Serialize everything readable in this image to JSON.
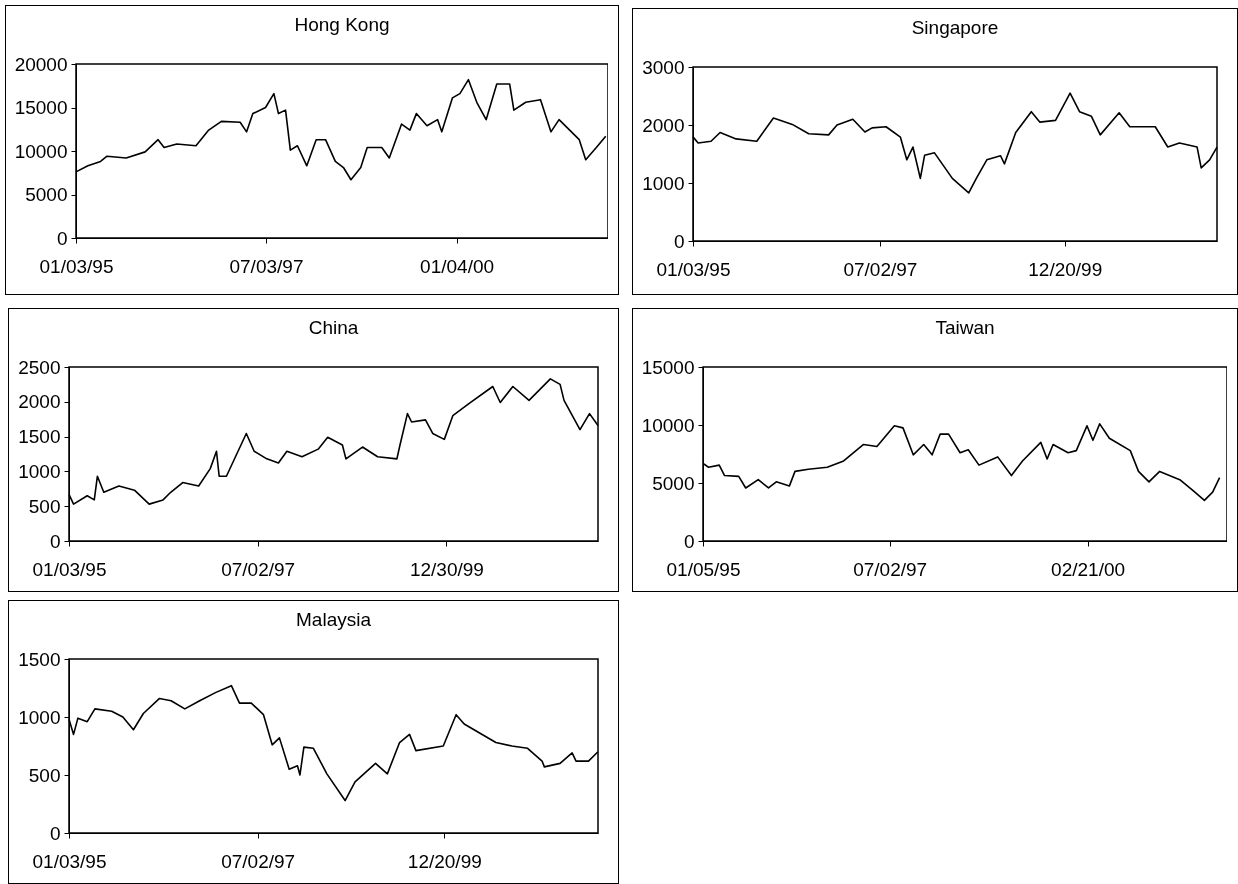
{
  "chart_data": [
    {
      "type": "line",
      "title": "Hong Kong",
      "xlim": [
        "1995-01-03",
        "2001-12-31"
      ],
      "xticks": [
        {
          "value": "1995-01-03",
          "label": "01/03/95"
        },
        {
          "value": "1997-07-03",
          "label": "07/03/97"
        },
        {
          "value": "2000-01-04",
          "label": "01/04/00"
        }
      ],
      "ylim": [
        0,
        20000
      ],
      "yticks": [
        0,
        5000,
        10000,
        15000,
        20000
      ],
      "series": [
        {
          "color": "#000000",
          "x": [
            "1995-01-03",
            "1995-03-01",
            "1995-05-01",
            "1995-06-01",
            "1995-09-01",
            "1995-12-01",
            "1996-02-01",
            "1996-03-01",
            "1996-05-01",
            "1996-08-01",
            "1996-10-01",
            "1996-12-01",
            "1997-03-01",
            "1997-04-01",
            "1997-05-01",
            "1997-07-01",
            "1997-08-10",
            "1997-09-01",
            "1997-10-05",
            "1997-10-28",
            "1997-12-01",
            "1998-01-15",
            "1998-03-01",
            "1998-04-15",
            "1998-06-01",
            "1998-07-10",
            "1998-08-15",
            "1998-10-01",
            "1998-11-01",
            "1999-01-10",
            "1999-02-15",
            "1999-04-15",
            "1999-05-25",
            "1999-06-25",
            "1999-08-15",
            "1999-10-05",
            "1999-10-25",
            "1999-12-15",
            "2000-01-20",
            "2000-03-01",
            "2000-04-10",
            "2000-05-25",
            "2000-07-15",
            "2000-09-15",
            "2000-10-05",
            "2000-12-01",
            "2001-02-10",
            "2001-04-01",
            "2001-05-10",
            "2001-08-15",
            "2001-09-15",
            "2001-11-05",
            "2001-12-20"
          ],
          "values": [
            7600,
            8300,
            8800,
            9400,
            9200,
            9900,
            11300,
            10400,
            10800,
            10600,
            12400,
            13400,
            13300,
            12200,
            14300,
            15000,
            16600,
            14300,
            14700,
            10100,
            10600,
            8300,
            11300,
            11300,
            8800,
            8100,
            6700,
            8100,
            10400,
            10400,
            9200,
            13100,
            12400,
            14300,
            12900,
            13600,
            12200,
            16100,
            16600,
            18200,
            15600,
            13600,
            17700,
            17700,
            14700,
            15600,
            15900,
            12200,
            13600,
            11300,
            9000,
            10400,
            11700
          ]
        }
      ]
    },
    {
      "type": "line",
      "title": "Singapore",
      "xlim": [
        "1995-01-03",
        "2001-12-31"
      ],
      "xticks": [
        {
          "value": "1995-01-03",
          "label": "01/03/95"
        },
        {
          "value": "1997-07-02",
          "label": "07/02/97"
        },
        {
          "value": "1999-12-20",
          "label": "12/20/99"
        }
      ],
      "ylim": [
        0,
        3000
      ],
      "yticks": [
        0,
        1000,
        2000,
        3000
      ],
      "series": [
        {
          "color": "#000000",
          "x": [
            "1995-01-03",
            "1995-01-28",
            "1995-04-01",
            "1995-05-15",
            "1995-08-01",
            "1995-11-10",
            "1996-01-30",
            "1996-05-01",
            "1996-07-20",
            "1996-10-25",
            "1996-12-05",
            "1997-02-20",
            "1997-04-20",
            "1997-05-25",
            "1997-08-01",
            "1997-10-10",
            "1997-11-10",
            "1997-12-10",
            "1998-01-15",
            "1998-02-05",
            "1998-03-25",
            "1998-06-20",
            "1998-09-08",
            "1998-10-15",
            "1998-12-05",
            "1999-02-10",
            "1999-03-01",
            "1999-04-25",
            "1999-07-10",
            "1999-08-20",
            "1999-11-05",
            "2000-01-15",
            "2000-03-01",
            "2000-04-28",
            "2000-06-10",
            "2000-09-10",
            "2000-11-01",
            "2001-03-05",
            "2001-05-05",
            "2001-07-01",
            "2001-09-25",
            "2001-10-15",
            "2001-11-25",
            "2001-12-31"
          ],
          "values": [
            1795,
            1690,
            1720,
            1870,
            1760,
            1720,
            2120,
            2010,
            1850,
            1830,
            2000,
            2100,
            1880,
            1950,
            1970,
            1790,
            1400,
            1620,
            1080,
            1480,
            1520,
            1080,
            830,
            1080,
            1400,
            1470,
            1330,
            1870,
            2230,
            2050,
            2080,
            2550,
            2230,
            2150,
            1830,
            2210,
            1970,
            1970,
            1620,
            1690,
            1620,
            1260,
            1400,
            1620
          ]
        }
      ]
    },
    {
      "type": "line",
      "title": "China",
      "xlim": [
        "1995-01-03",
        "2001-12-31"
      ],
      "xticks": [
        {
          "value": "1995-01-03",
          "label": "01/03/95"
        },
        {
          "value": "1997-07-02",
          "label": "07/02/97"
        },
        {
          "value": "1999-12-30",
          "label": "12/30/99"
        }
      ],
      "ylim": [
        0,
        2500
      ],
      "yticks": [
        0,
        500,
        1000,
        1500,
        2000,
        2500
      ],
      "series": [
        {
          "color": "#000000",
          "x": [
            "1995-01-03",
            "1995-01-25",
            "1995-04-01",
            "1995-05-05",
            "1995-05-20",
            "1995-06-20",
            "1995-09-01",
            "1995-11-15",
            "1996-01-25",
            "1996-04-01",
            "1996-05-08",
            "1996-07-05",
            "1996-09-20",
            "1996-11-15",
            "1996-12-15",
            "1996-12-28",
            "1997-02-01",
            "1997-05-08",
            "1997-06-15",
            "1997-08-15",
            "1997-10-10",
            "1997-11-20",
            "1998-02-01",
            "1998-04-20",
            "1998-06-05",
            "1998-08-15",
            "1998-09-01",
            "1998-11-20",
            "1999-02-01",
            "1999-05-05",
            "1999-05-20",
            "1999-06-25",
            "1999-07-15",
            "1999-09-20",
            "1999-10-25",
            "1999-12-20",
            "2000-01-30",
            "2000-04-15",
            "2000-08-10",
            "2000-09-15",
            "2000-11-15",
            "2001-02-01",
            "2001-05-15",
            "2001-07-01",
            "2001-07-20",
            "2001-10-05",
            "2001-11-20",
            "2001-12-31"
          ],
          "values": [
            670,
            530,
            650,
            590,
            930,
            700,
            790,
            730,
            530,
            590,
            700,
            840,
            790,
            1040,
            1290,
            930,
            930,
            1545,
            1290,
            1180,
            1120,
            1290,
            1210,
            1320,
            1490,
            1380,
            1180,
            1350,
            1210,
            1180,
            1380,
            1830,
            1710,
            1740,
            1545,
            1460,
            1800,
            1970,
            2220,
            1990,
            2220,
            2020,
            2330,
            2250,
            2020,
            1600,
            1830,
            1660
          ]
        }
      ]
    },
    {
      "type": "line",
      "title": "Taiwan",
      "xlim": [
        "1995-01-05",
        "2001-12-31"
      ],
      "xticks": [
        {
          "value": "1995-01-05",
          "label": "01/05/95"
        },
        {
          "value": "1997-07-02",
          "label": "07/02/97"
        },
        {
          "value": "2000-02-21",
          "label": "02/21/00"
        }
      ],
      "ylim": [
        0,
        15000
      ],
      "yticks": [
        0,
        5000,
        10000,
        15000
      ],
      "series": [
        {
          "color": "#000000",
          "x": [
            "1995-01-05",
            "1995-02-01",
            "1995-03-25",
            "1995-04-20",
            "1995-06-28",
            "1995-08-01",
            "1995-10-01",
            "1995-11-20",
            "1995-12-28",
            "1996-03-01",
            "1996-03-28",
            "1996-06-01",
            "1996-09-01",
            "1996-11-20",
            "1997-02-25",
            "1997-05-01",
            "1997-07-25",
            "1997-09-05",
            "1997-10-25",
            "1997-12-15",
            "1998-01-25",
            "1998-03-05",
            "1998-04-15",
            "1998-06-10",
            "1998-07-20",
            "1998-09-10",
            "1998-12-10",
            "1999-02-15",
            "1999-04-10",
            "1999-07-08",
            "1999-08-08",
            "1999-09-06",
            "1999-11-18",
            "1999-12-28",
            "2000-02-18",
            "2000-03-18",
            "2000-04-20",
            "2000-06-06",
            "2000-09-16",
            "2000-10-26",
            "2000-12-16",
            "2001-02-06",
            "2001-05-15",
            "2001-07-16",
            "2001-09-12",
            "2001-10-22",
            "2001-11-25"
          ],
          "values": [
            6700,
            6360,
            6540,
            5640,
            5570,
            4570,
            5290,
            4570,
            5100,
            4750,
            6000,
            6180,
            6360,
            6900,
            8320,
            8140,
            9930,
            9750,
            7430,
            8320,
            7430,
            9210,
            9210,
            7610,
            7860,
            6540,
            7250,
            5640,
            6900,
            8500,
            7070,
            8320,
            7610,
            7790,
            9930,
            8680,
            10100,
            8860,
            7790,
            6000,
            5100,
            6000,
            5290,
            4390,
            3500,
            4210,
            5460
          ]
        }
      ]
    },
    {
      "type": "line",
      "title": "Malaysia",
      "xlim": [
        "1995-01-03",
        "2001-12-31"
      ],
      "xticks": [
        {
          "value": "1995-01-03",
          "label": "01/03/95"
        },
        {
          "value": "1997-07-02",
          "label": "07/02/97"
        },
        {
          "value": "1999-12-20",
          "label": "12/20/99"
        }
      ],
      "ylim": [
        0,
        1500
      ],
      "yticks": [
        0,
        500,
        1000,
        1500
      ],
      "series": [
        {
          "color": "#000000",
          "x": [
            "1995-01-03",
            "1995-01-25",
            "1995-02-15",
            "1995-04-01",
            "1995-05-08",
            "1995-07-28",
            "1995-09-20",
            "1995-11-10",
            "1995-12-28",
            "1996-03-15",
            "1996-05-10",
            "1996-07-15",
            "1996-09-25",
            "1996-12-10",
            "1997-02-25",
            "1997-04-05",
            "1997-06-01",
            "1997-07-30",
            "1997-09-10",
            "1997-10-15",
            "1997-12-01",
            "1998-01-10",
            "1998-01-22",
            "1998-02-10",
            "1998-03-28",
            "1998-06-01",
            "1998-08-28",
            "1998-10-15",
            "1999-01-22",
            "1999-03-20",
            "1999-05-18",
            "1999-07-05",
            "1999-08-05",
            "1999-12-15",
            "2000-02-15",
            "2000-03-25",
            "2000-06-28",
            "2000-08-25",
            "2000-11-10",
            "2001-01-25",
            "2001-04-05",
            "2001-04-16",
            "2001-07-01",
            "2001-08-28",
            "2001-09-16",
            "2001-11-15",
            "2001-12-31"
          ],
          "values": [
            980,
            850,
            990,
            960,
            1070,
            1050,
            1000,
            890,
            1030,
            1160,
            1140,
            1070,
            1140,
            1210,
            1270,
            1120,
            1120,
            1020,
            760,
            820,
            550,
            580,
            500,
            740,
            730,
            510,
            280,
            440,
            600,
            510,
            780,
            850,
            710,
            750,
            1020,
            940,
            840,
            780,
            750,
            730,
            620,
            570,
            600,
            690,
            620,
            620,
            700
          ]
        }
      ]
    }
  ]
}
